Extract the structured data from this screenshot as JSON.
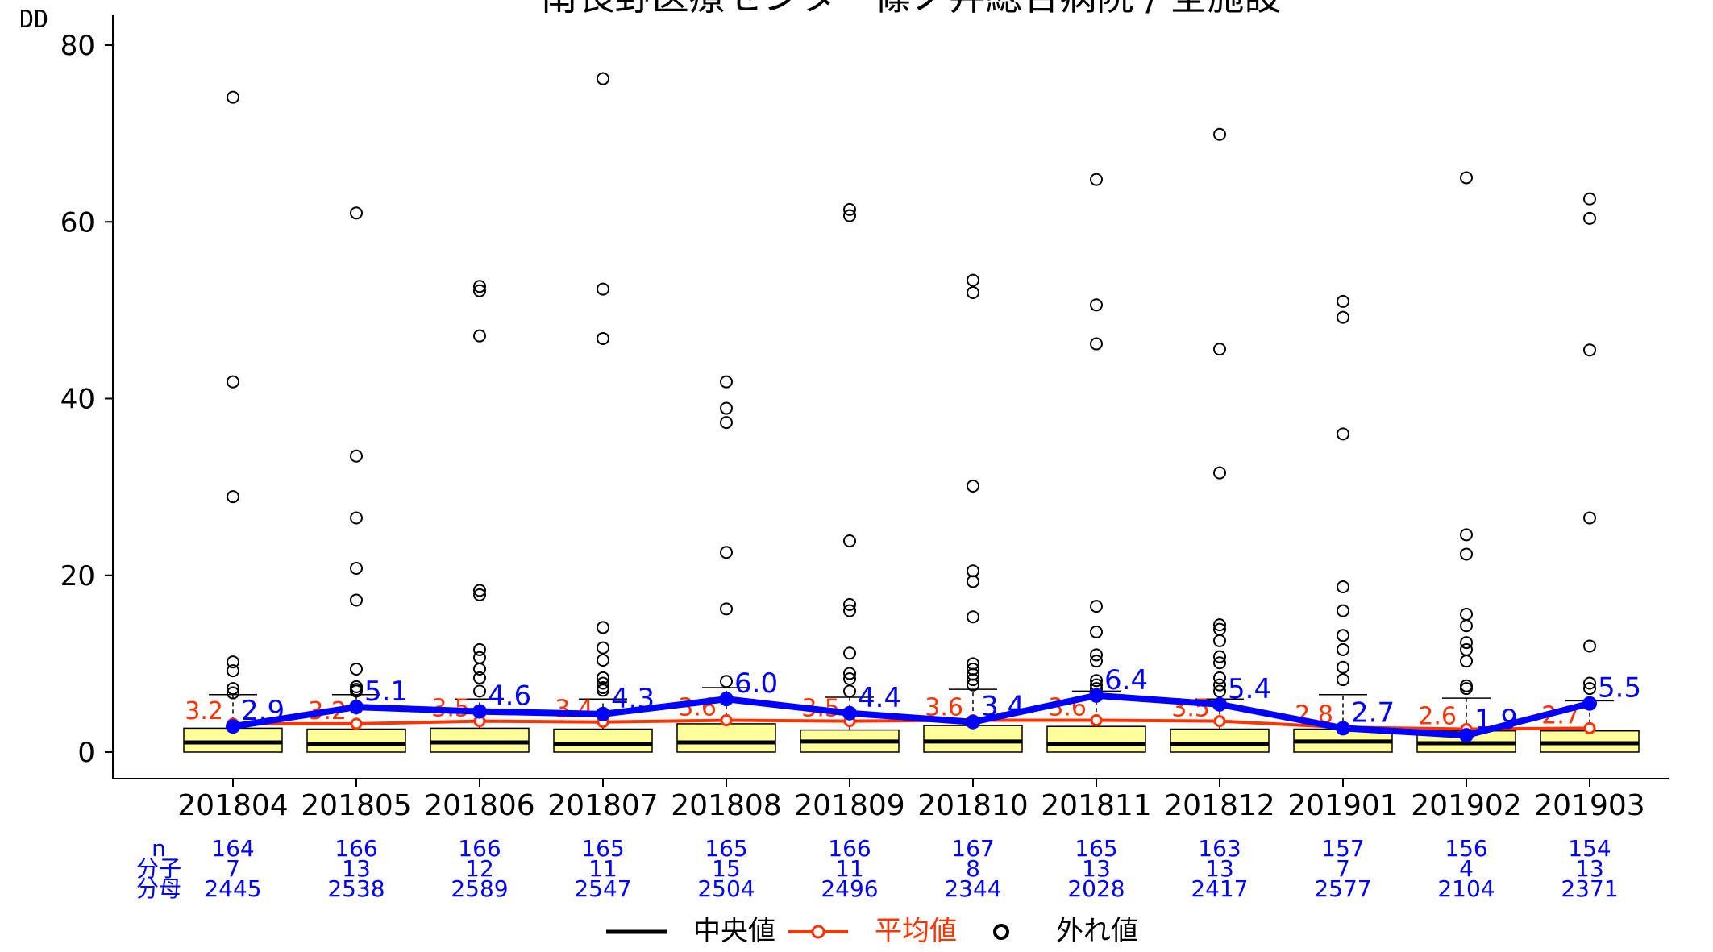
{
  "chart_data": {
    "type": "box",
    "title": "南長野医療センター篠ノ井総合病院 / 全施設",
    "ylabel": "DD",
    "xlabel": "",
    "ylim": [
      0,
      80
    ],
    "yticks": [
      0,
      20,
      40,
      60,
      80
    ],
    "categories": [
      "201804",
      "201805",
      "201806",
      "201807",
      "201808",
      "201809",
      "201810",
      "201811",
      "201812",
      "201901",
      "201902",
      "201903"
    ],
    "boxes": [
      {
        "q1": 0.0,
        "median": 1.1,
        "q3": 2.7,
        "whisker_high": 6.5,
        "outliers": [
          74.1,
          41.9,
          28.9,
          10.2,
          9.2,
          7.2,
          6.7
        ]
      },
      {
        "q1": 0.0,
        "median": 0.9,
        "q3": 2.6,
        "whisker_high": 6.5,
        "outliers": [
          61.0,
          33.5,
          26.5,
          20.8,
          17.2,
          9.4,
          7.4,
          7.1,
          6.9
        ]
      },
      {
        "q1": 0.0,
        "median": 1.1,
        "q3": 2.7,
        "whisker_high": 6.0,
        "outliers": [
          52.7,
          52.2,
          47.1,
          18.3,
          17.8,
          11.6,
          10.7,
          9.4,
          8.4,
          6.9
        ]
      },
      {
        "q1": 0.0,
        "median": 0.9,
        "q3": 2.6,
        "whisker_high": 6.0,
        "outliers": [
          76.2,
          52.4,
          46.8,
          14.1,
          11.8,
          10.4,
          8.4,
          7.8,
          7.3,
          7.0
        ]
      },
      {
        "q1": 0.0,
        "median": 1.1,
        "q3": 3.2,
        "whisker_high": 7.3,
        "outliers": [
          41.9,
          38.9,
          37.3,
          22.6,
          16.2,
          8.0
        ]
      },
      {
        "q1": 0.0,
        "median": 1.2,
        "q3": 2.5,
        "whisker_high": 6.2,
        "outliers": [
          61.4,
          60.7,
          23.9,
          16.7,
          16.0,
          11.2,
          8.9,
          8.3,
          6.9
        ]
      },
      {
        "q1": 0.0,
        "median": 1.2,
        "q3": 3.0,
        "whisker_high": 7.1,
        "outliers": [
          53.4,
          52.0,
          30.1,
          20.5,
          19.3,
          15.3,
          10.0,
          9.4,
          8.8,
          8.2,
          7.6
        ]
      },
      {
        "q1": 0.0,
        "median": 0.9,
        "q3": 2.9,
        "whisker_high": 6.9,
        "outliers": [
          64.8,
          50.6,
          46.2,
          16.5,
          13.6,
          11.0,
          10.3,
          8.1,
          7.6,
          7.2
        ]
      },
      {
        "q1": 0.0,
        "median": 0.9,
        "q3": 2.6,
        "whisker_high": 6.0,
        "outliers": [
          69.9,
          45.6,
          31.6,
          14.4,
          13.9,
          12.6,
          10.8,
          10.1,
          8.4,
          7.6,
          6.9
        ]
      },
      {
        "q1": 0.0,
        "median": 1.2,
        "q3": 2.6,
        "whisker_high": 6.5,
        "outliers": [
          51.0,
          49.2,
          36.0,
          18.7,
          16.0,
          13.2,
          11.6,
          9.6,
          8.2
        ]
      },
      {
        "q1": 0.0,
        "median": 1.0,
        "q3": 2.4,
        "whisker_high": 6.1,
        "outliers": [
          65.0,
          24.6,
          22.4,
          15.6,
          14.3,
          12.4,
          11.6,
          10.3,
          7.5,
          7.2
        ]
      },
      {
        "q1": 0.0,
        "median": 1.0,
        "q3": 2.4,
        "whisker_high": 5.8,
        "outliers": [
          62.6,
          60.4,
          45.5,
          26.5,
          12.0,
          7.8,
          7.2
        ]
      }
    ],
    "series": [
      {
        "name": "平均値",
        "color": "#ff3300",
        "values": [
          3.2,
          3.2,
          3.5,
          3.4,
          3.6,
          3.5,
          3.6,
          3.6,
          3.5,
          2.8,
          2.6,
          2.7
        ],
        "labels": [
          "3.2",
          "3.2",
          "3.5",
          "3.4",
          "3.6",
          "3.5",
          "3.6",
          "3.6",
          "3.5",
          "2.8",
          "2.6",
          "2.7"
        ]
      },
      {
        "color": "#0000ff",
        "values": [
          2.9,
          5.1,
          4.6,
          4.3,
          6.0,
          4.4,
          3.4,
          6.4,
          5.4,
          2.7,
          1.9,
          5.5
        ],
        "labels": [
          "2.9",
          "5.1",
          "4.6",
          "4.3",
          "6.0",
          "4.4",
          "3.4",
          "6.4",
          "5.4",
          "2.7",
          "1.9",
          "5.5"
        ]
      }
    ],
    "legend": {
      "position": "bottom",
      "items": [
        {
          "label": "中央値",
          "color": "#000000",
          "kind": "line"
        },
        {
          "label": "平均値",
          "color": "#ff3300",
          "kind": "line-marker"
        },
        {
          "label": "外れ値",
          "color": "#000000",
          "kind": "marker"
        }
      ]
    },
    "table": {
      "row_labels": [
        "n",
        "分子",
        "分母"
      ],
      "color": "#0000ff",
      "n": [
        "164",
        "166",
        "166",
        "165",
        "165",
        "166",
        "167",
        "165",
        "163",
        "157",
        "156",
        "154"
      ],
      "numerator": [
        "7",
        "13",
        "12",
        "11",
        "15",
        "11",
        "8",
        "13",
        "13",
        "7",
        "4",
        "13"
      ],
      "denominator": [
        "2445",
        "2538",
        "2589",
        "2547",
        "2504",
        "2496",
        "2344",
        "2028",
        "2417",
        "2577",
        "2104",
        "2371"
      ]
    },
    "box_fill": "#ffff99",
    "grid": false
  }
}
